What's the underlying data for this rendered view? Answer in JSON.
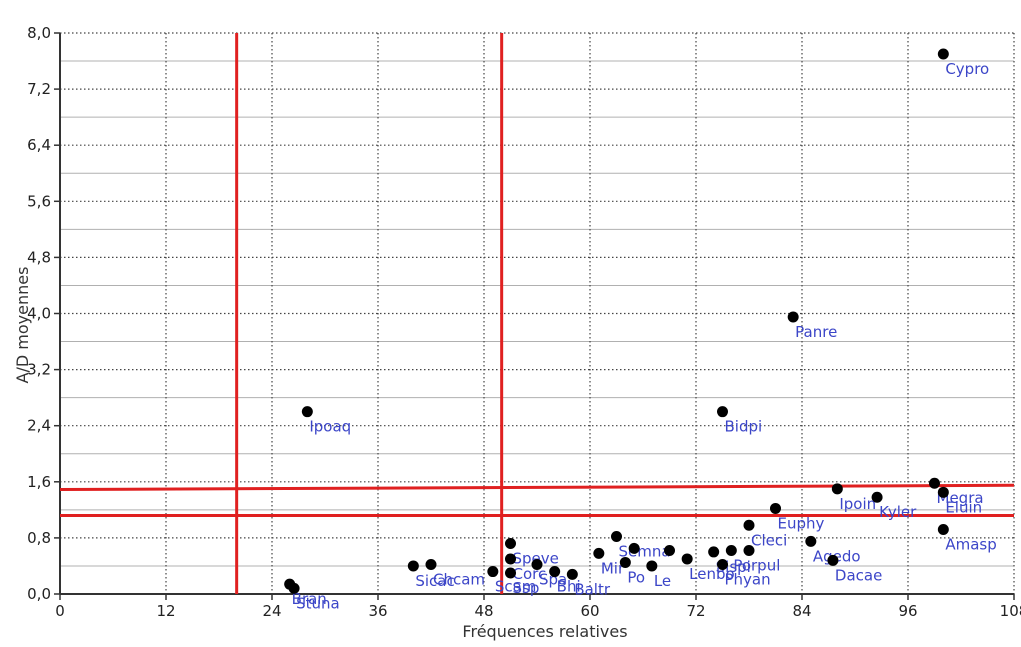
{
  "chart_data": {
    "type": "scatter",
    "title": "",
    "xlabel": "Fréquences relatives",
    "ylabel": "A/D moyennes",
    "xlim": [
      0,
      108
    ],
    "ylim": [
      0,
      8.0
    ],
    "x_ticks": [
      "0",
      "12",
      "24",
      "36",
      "48",
      "60",
      "72",
      "84",
      "96",
      "108"
    ],
    "y_ticks": [
      "0,0",
      "0,8",
      "1,6",
      "2,4",
      "3,2",
      "4,0",
      "4,8",
      "5,6",
      "6,4",
      "7,2",
      "8,0"
    ],
    "grid": true,
    "point_color": "#000000",
    "label_color": "#3c46c8",
    "reference_color": "#e02020",
    "vertical_reference_lines": [
      20,
      50
    ],
    "horizontal_reference_lines": [
      {
        "from": [
          0,
          1.49
        ],
        "to": [
          108,
          1.55
        ]
      },
      {
        "from": [
          0,
          1.12
        ],
        "to": [
          108,
          1.12
        ]
      }
    ],
    "points": [
      {
        "x": 100,
        "y": 7.7,
        "label": "Cypro"
      },
      {
        "x": 83,
        "y": 3.95,
        "label": "Panre"
      },
      {
        "x": 28,
        "y": 2.6,
        "label": "Ipoaq"
      },
      {
        "x": 75,
        "y": 2.6,
        "label": "Bidpi"
      },
      {
        "x": 88,
        "y": 1.5,
        "label": "Ipoin"
      },
      {
        "x": 92.5,
        "y": 1.38,
        "label": "Kyler"
      },
      {
        "x": 99,
        "y": 1.58,
        "label": "Megra"
      },
      {
        "x": 100,
        "y": 1.45,
        "label": "Eluin"
      },
      {
        "x": 100,
        "y": 0.92,
        "label": "Amasp"
      },
      {
        "x": 81,
        "y": 1.22,
        "label": "Euphy"
      },
      {
        "x": 78,
        "y": 0.98,
        "label": "Cleci"
      },
      {
        "x": 85,
        "y": 0.75,
        "label": "Agedo"
      },
      {
        "x": 87.5,
        "y": 0.48,
        "label": "Dacae"
      },
      {
        "x": 74,
        "y": 0.6,
        "label": "Sispi"
      },
      {
        "x": 76,
        "y": 0.62,
        "label": "Porpul"
      },
      {
        "x": 78,
        "y": 0.62,
        "label": ""
      },
      {
        "x": 75,
        "y": 0.42,
        "label": "Phyan"
      },
      {
        "x": 51,
        "y": 0.72,
        "label": "Speve"
      },
      {
        "x": 51,
        "y": 0.5,
        "label": "Corc"
      },
      {
        "x": 51,
        "y": 0.3,
        "label": "Ssp"
      },
      {
        "x": 54,
        "y": 0.42,
        "label": "Spa"
      },
      {
        "x": 56,
        "y": 0.32,
        "label": "Bhi"
      },
      {
        "x": 58,
        "y": 0.28,
        "label": "Baltr"
      },
      {
        "x": 63,
        "y": 0.82,
        "label": "Semna"
      },
      {
        "x": 65,
        "y": 0.65,
        "label": ""
      },
      {
        "x": 61,
        "y": 0.58,
        "label": "Mir"
      },
      {
        "x": 64,
        "y": 0.45,
        "label": "Po"
      },
      {
        "x": 67,
        "y": 0.4,
        "label": "Le"
      },
      {
        "x": 69,
        "y": 0.62,
        "label": ""
      },
      {
        "x": 71,
        "y": 0.5,
        "label": "Lenbo"
      },
      {
        "x": 49,
        "y": 0.32,
        "label": "Scam"
      },
      {
        "x": 40,
        "y": 0.4,
        "label": "Sicac"
      },
      {
        "x": 42,
        "y": 0.42,
        "label": "Chcam"
      },
      {
        "x": 26,
        "y": 0.14,
        "label": "Bran"
      },
      {
        "x": 26.5,
        "y": 0.08,
        "label": "Stuna"
      }
    ]
  }
}
